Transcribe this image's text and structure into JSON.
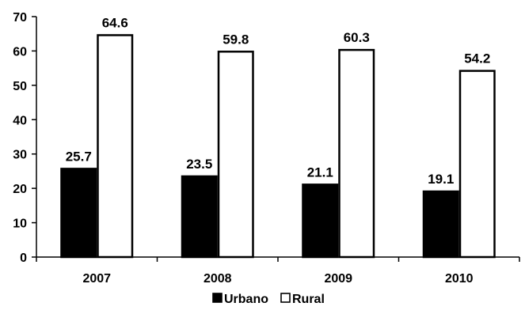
{
  "chart_data": {
    "type": "bar",
    "categories": [
      "2007",
      "2008",
      "2009",
      "2010"
    ],
    "series": [
      {
        "name": "Urbano",
        "values": [
          25.7,
          23.5,
          21.1,
          19.1
        ],
        "fill": "#000000"
      },
      {
        "name": "Rural",
        "values": [
          64.6,
          59.8,
          60.3,
          54.2
        ],
        "fill": "#ffffff"
      }
    ],
    "data_labels": [
      [
        "25.7",
        "23.5",
        "21.1",
        "19.1"
      ],
      [
        "64.6",
        "59.8",
        "60.3",
        "54.2"
      ]
    ],
    "y_ticks": [
      "0",
      "10",
      "20",
      "30",
      "40",
      "50",
      "60",
      "70"
    ],
    "ylim": [
      0,
      70
    ],
    "grid": false,
    "legend_position": "bottom"
  }
}
